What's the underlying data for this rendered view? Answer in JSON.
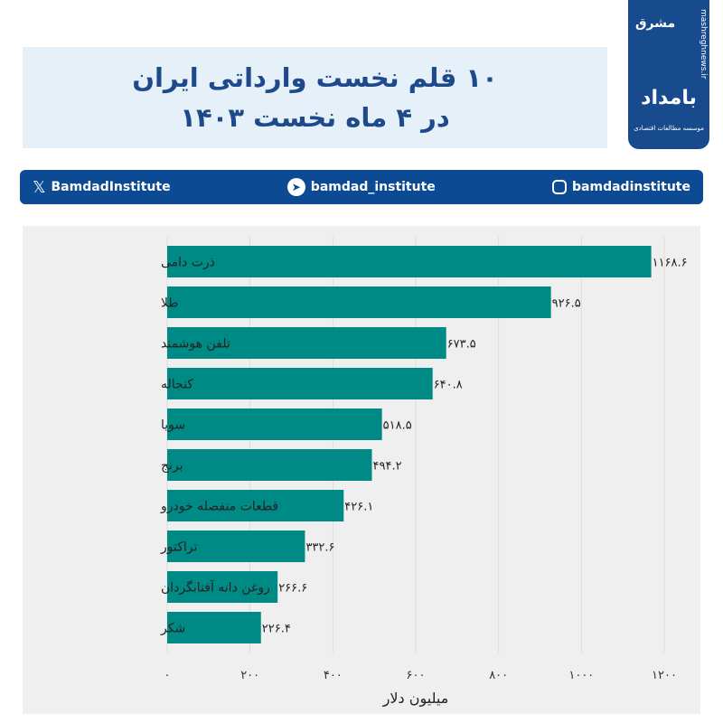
{
  "header": {
    "title_line1": "۱۰ قلم نخست وارداتی ایران",
    "title_line2": "در ۴ ماه نخست ۱۴۰۳"
  },
  "logo": {
    "brand": "بامداد",
    "subtitle": "موسسه مطالعات اقتصادی",
    "partner": "مشرق",
    "url": "mashreghnews.ir"
  },
  "social": {
    "x": "BamdadInstitute",
    "telegram": "bamdad_institute",
    "instagram": "bamdadinstitute"
  },
  "colors": {
    "bar": "#008a85",
    "header_blue": "#0d4a94",
    "title_text": "#1e4a8c"
  },
  "chart_data": {
    "type": "bar",
    "orientation": "horizontal",
    "categories": [
      "ذرت دامی",
      "طلا",
      "تلفن هوشمند",
      "کنجاله",
      "سویا",
      "برنج",
      "قطعات منفصله خودرو",
      "تراکتور",
      "روغن دانه آفتابگردان",
      "شکر"
    ],
    "values": [
      1168.6,
      926.5,
      673.5,
      640.8,
      518.5,
      494.2,
      426.1,
      332.6,
      266.6,
      226.4
    ],
    "value_labels": [
      "۱۱۶۸.۶",
      "۹۲۶.۵",
      "۶۷۳.۵",
      "۶۴۰.۸",
      "۵۱۸.۵",
      "۴۹۴.۲",
      "۴۲۶.۱",
      "۳۳۲.۶",
      "۲۶۶.۶",
      "۲۲۶.۴"
    ],
    "xticks": [
      0,
      200,
      400,
      600,
      800,
      1000,
      1200
    ],
    "xtick_labels": [
      "۰",
      "۲۰۰",
      "۴۰۰",
      "۶۰۰",
      "۸۰۰",
      "۱۰۰۰",
      "۱۲۰۰"
    ],
    "xlabel": "میلیون دلار",
    "xlim": [
      0,
      1200
    ],
    "grid": "vertical"
  }
}
